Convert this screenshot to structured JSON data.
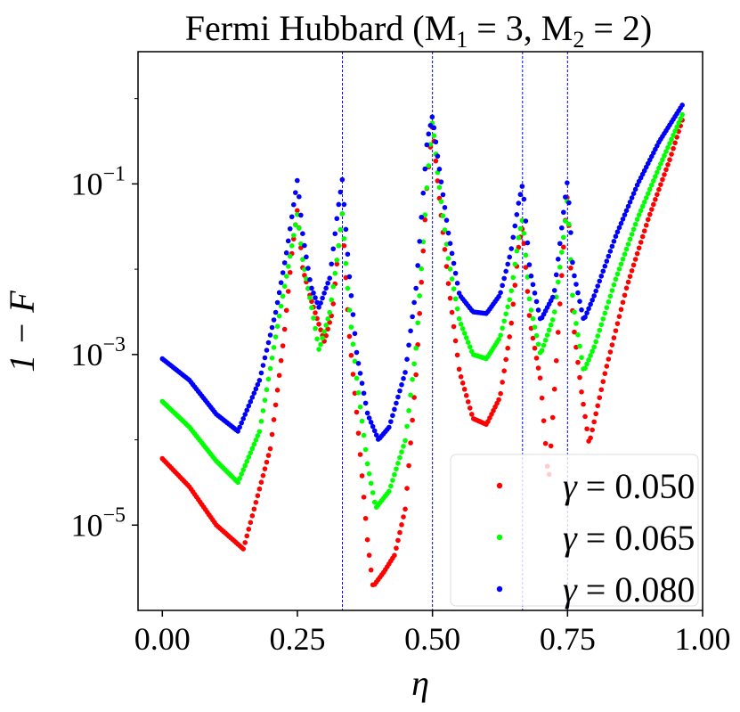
{
  "chart_data": {
    "type": "scatter",
    "title": "Fermi Hubbard (M",
    "title_parts": {
      "prefix": "Fermi Hubbard (M",
      "sub1": "1",
      "mid": " = 3,  M",
      "sub2": "2",
      "suffix": " = 2)"
    },
    "xlabel": "η",
    "ylabel": "1 − F",
    "xlim": [
      -0.045,
      1.0
    ],
    "ylim_log10": [
      -6.0,
      0.55
    ],
    "yscale": "log",
    "x_ticks": [
      {
        "value": 0.0,
        "label": "0.00"
      },
      {
        "value": 0.25,
        "label": "0.25"
      },
      {
        "value": 0.5,
        "label": "0.50"
      },
      {
        "value": 0.75,
        "label": "0.75"
      },
      {
        "value": 1.0,
        "label": "1.00"
      }
    ],
    "y_ticks": [
      {
        "exp": -1,
        "base": "10",
        "sup": "−1"
      },
      {
        "exp": -3,
        "base": "10",
        "sup": "−3"
      },
      {
        "exp": -5,
        "base": "10",
        "sup": "−5"
      }
    ],
    "vlines": [
      0.3333,
      0.5,
      0.6667,
      0.75
    ],
    "vline_color": "#0000ff",
    "legend_position": "lower-right",
    "series": [
      {
        "name": "γ = 0.050",
        "label_symbol": "γ",
        "label_value": "0.050",
        "color": "#ff0000",
        "points_log10": [
          [
            0.0,
            -4.22
          ],
          [
            0.05,
            -4.55
          ],
          [
            0.1,
            -5.0
          ],
          [
            0.15,
            -5.28
          ],
          [
            0.2,
            -4.1
          ],
          [
            0.225,
            -2.8
          ],
          [
            0.24,
            -1.8
          ],
          [
            0.25,
            -1.3
          ],
          [
            0.26,
            -2.0
          ],
          [
            0.275,
            -2.35
          ],
          [
            0.3,
            -2.85
          ],
          [
            0.315,
            -2.5
          ],
          [
            0.325,
            -1.8
          ],
          [
            0.333,
            -1.35
          ],
          [
            0.345,
            -2.7
          ],
          [
            0.36,
            -3.7
          ],
          [
            0.38,
            -5.2
          ],
          [
            0.39,
            -5.72
          ],
          [
            0.41,
            -5.55
          ],
          [
            0.43,
            -5.35
          ],
          [
            0.45,
            -4.8
          ],
          [
            0.47,
            -3.2
          ],
          [
            0.49,
            -1.0
          ],
          [
            0.5,
            -0.3
          ],
          [
            0.51,
            -1.0
          ],
          [
            0.53,
            -2.2
          ],
          [
            0.55,
            -3.2
          ],
          [
            0.575,
            -3.75
          ],
          [
            0.6,
            -3.82
          ],
          [
            0.625,
            -3.5
          ],
          [
            0.645,
            -2.7
          ],
          [
            0.66,
            -1.7
          ],
          [
            0.667,
            -1.5
          ],
          [
            0.68,
            -2.6
          ],
          [
            0.7,
            -3.3
          ],
          [
            0.715,
            -4.5
          ],
          [
            0.73,
            -3.0
          ],
          [
            0.745,
            -1.5
          ],
          [
            0.75,
            -1.1
          ],
          [
            0.76,
            -2.6
          ],
          [
            0.775,
            -3.4
          ],
          [
            0.79,
            -4.05
          ],
          [
            0.82,
            -3.2
          ],
          [
            0.86,
            -2.2
          ],
          [
            0.9,
            -1.4
          ],
          [
            0.94,
            -0.7
          ],
          [
            0.965,
            -0.2
          ]
        ]
      },
      {
        "name": "γ = 0.065",
        "label_symbol": "γ",
        "label_value": "0.065",
        "color": "#00ff00",
        "points_log10": [
          [
            0.0,
            -3.55
          ],
          [
            0.05,
            -3.85
          ],
          [
            0.1,
            -4.25
          ],
          [
            0.14,
            -4.5
          ],
          [
            0.18,
            -3.9
          ],
          [
            0.215,
            -2.6
          ],
          [
            0.235,
            -1.9
          ],
          [
            0.25,
            -1.35
          ],
          [
            0.26,
            -1.9
          ],
          [
            0.275,
            -2.4
          ],
          [
            0.29,
            -2.95
          ],
          [
            0.31,
            -2.5
          ],
          [
            0.325,
            -1.8
          ],
          [
            0.333,
            -1.35
          ],
          [
            0.345,
            -2.4
          ],
          [
            0.36,
            -3.3
          ],
          [
            0.38,
            -4.3
          ],
          [
            0.395,
            -4.8
          ],
          [
            0.42,
            -4.6
          ],
          [
            0.45,
            -4.0
          ],
          [
            0.47,
            -2.9
          ],
          [
            0.49,
            -1.0
          ],
          [
            0.5,
            -0.25
          ],
          [
            0.51,
            -0.9
          ],
          [
            0.53,
            -1.9
          ],
          [
            0.55,
            -2.6
          ],
          [
            0.575,
            -3.0
          ],
          [
            0.6,
            -3.05
          ],
          [
            0.625,
            -2.8
          ],
          [
            0.645,
            -2.3
          ],
          [
            0.66,
            -1.6
          ],
          [
            0.667,
            -1.4
          ],
          [
            0.68,
            -2.4
          ],
          [
            0.7,
            -3.0
          ],
          [
            0.725,
            -2.55
          ],
          [
            0.745,
            -1.5
          ],
          [
            0.75,
            -1.15
          ],
          [
            0.76,
            -2.4
          ],
          [
            0.78,
            -3.2
          ],
          [
            0.8,
            -2.9
          ],
          [
            0.84,
            -2.1
          ],
          [
            0.88,
            -1.4
          ],
          [
            0.92,
            -0.8
          ],
          [
            0.965,
            -0.15
          ]
        ]
      },
      {
        "name": "γ = 0.080",
        "label_symbol": "γ",
        "label_value": "0.080",
        "color": "#0000ff",
        "points_log10": [
          [
            0.0,
            -3.05
          ],
          [
            0.05,
            -3.3
          ],
          [
            0.1,
            -3.7
          ],
          [
            0.14,
            -3.9
          ],
          [
            0.18,
            -3.3
          ],
          [
            0.21,
            -2.5
          ],
          [
            0.23,
            -1.8
          ],
          [
            0.25,
            -0.95
          ],
          [
            0.26,
            -1.6
          ],
          [
            0.275,
            -2.2
          ],
          [
            0.29,
            -2.45
          ],
          [
            0.31,
            -2.1
          ],
          [
            0.325,
            -1.3
          ],
          [
            0.333,
            -0.95
          ],
          [
            0.345,
            -2.0
          ],
          [
            0.36,
            -3.0
          ],
          [
            0.38,
            -3.7
          ],
          [
            0.4,
            -4.0
          ],
          [
            0.42,
            -3.85
          ],
          [
            0.45,
            -3.2
          ],
          [
            0.47,
            -2.2
          ],
          [
            0.49,
            -0.5
          ],
          [
            0.5,
            -0.2
          ],
          [
            0.51,
            -0.7
          ],
          [
            0.53,
            -1.6
          ],
          [
            0.55,
            -2.3
          ],
          [
            0.575,
            -2.5
          ],
          [
            0.6,
            -2.52
          ],
          [
            0.625,
            -2.3
          ],
          [
            0.645,
            -1.8
          ],
          [
            0.66,
            -1.2
          ],
          [
            0.667,
            -1.0
          ],
          [
            0.68,
            -2.0
          ],
          [
            0.7,
            -2.6
          ],
          [
            0.725,
            -2.3
          ],
          [
            0.745,
            -1.2
          ],
          [
            0.75,
            -0.95
          ],
          [
            0.76,
            -2.0
          ],
          [
            0.78,
            -2.6
          ],
          [
            0.8,
            -2.3
          ],
          [
            0.84,
            -1.6
          ],
          [
            0.88,
            -1.0
          ],
          [
            0.92,
            -0.5
          ],
          [
            0.965,
            -0.05
          ]
        ]
      }
    ]
  }
}
